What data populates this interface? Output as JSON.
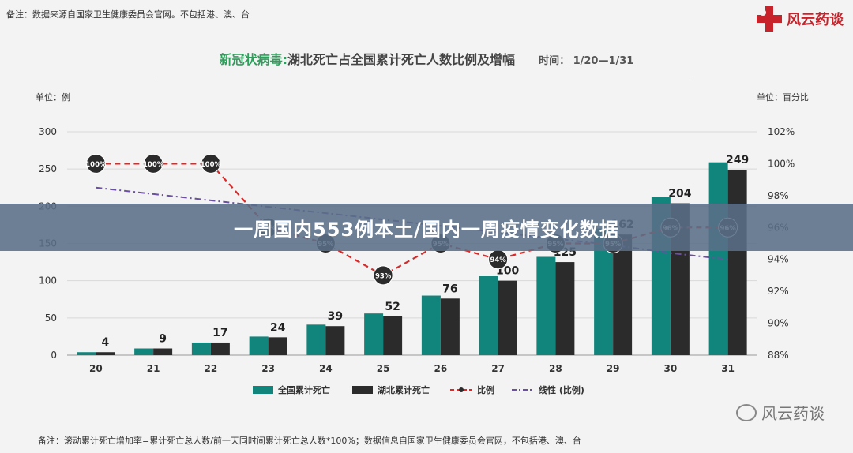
{
  "header": {
    "note": "备注：数据来源自国家卫生健康委员会官网。不包括港、澳、台",
    "logo_text": "风云药谈"
  },
  "title": {
    "green": "新冠状病毒:",
    "main": "湖北死亡占全国累计死亡人数比例及增幅",
    "time": "时间： 1/20—1/31"
  },
  "units": {
    "left": "单位：例",
    "right": "单位：百分比"
  },
  "banner": {
    "text": "一周国内553例本土/国内一周疫情变化数据"
  },
  "footer": {
    "note": "备注：滚动累计死亡增加率=累计死亡总人数/前一天同时间累计死亡总人数*100%；数据信息自国家卫生健康委员会官网，不包括港、澳、台",
    "watermark": "风云药谈"
  },
  "colors": {
    "teal": "#11857c",
    "dark": "#2b2b2b",
    "ratio_line": "#d92a2a",
    "trend_line": "#6b4fa0"
  },
  "chart_data": {
    "type": "bar",
    "categories": [
      "20",
      "21",
      "22",
      "23",
      "24",
      "25",
      "26",
      "27",
      "28",
      "29",
      "30",
      "31"
    ],
    "series": [
      {
        "name": "全国累计死亡",
        "type": "bar",
        "axis": "left",
        "values": [
          4,
          9,
          17,
          25,
          41,
          56,
          80,
          106,
          132,
          170,
          213,
          259
        ]
      },
      {
        "name": "湖北累计死亡",
        "type": "bar",
        "axis": "left",
        "values": [
          4,
          9,
          17,
          24,
          39,
          52,
          76,
          100,
          125,
          162,
          204,
          249
        ]
      },
      {
        "name": "比例",
        "type": "line",
        "axis": "right",
        "values": [
          100,
          100,
          100,
          96,
          95,
          93,
          95,
          94,
          95,
          95,
          96,
          96
        ],
        "labels": [
          "100%",
          "100%",
          "100%",
          "96%",
          "95%",
          "93%",
          "95%",
          "94%",
          "95%",
          "95%",
          "96%",
          "96%"
        ]
      },
      {
        "name": "线性 (比例)",
        "type": "trendline",
        "axis": "right",
        "values": [
          98.5,
          98.1,
          97.7,
          97.3,
          96.9,
          96.5,
          96.1,
          95.7,
          95.3,
          94.9,
          94.4,
          94.0
        ]
      }
    ],
    "bar_labels": [
      4,
      9,
      17,
      24,
      39,
      52,
      76,
      100,
      125,
      162,
      204,
      249
    ],
    "ylim_left": [
      0,
      300
    ],
    "yticks_left": [
      "0",
      "50",
      "100",
      "150",
      "200",
      "250",
      "300"
    ],
    "ylim_right": [
      88,
      102
    ],
    "yticks_right": [
      "88%",
      "90%",
      "92%",
      "94%",
      "96%",
      "98%",
      "100%",
      "102%"
    ],
    "legend": [
      "全国累计死亡",
      "湖北累计死亡",
      "比例",
      "线性 (比例)"
    ],
    "legend_position": "bottom",
    "grid": true
  }
}
